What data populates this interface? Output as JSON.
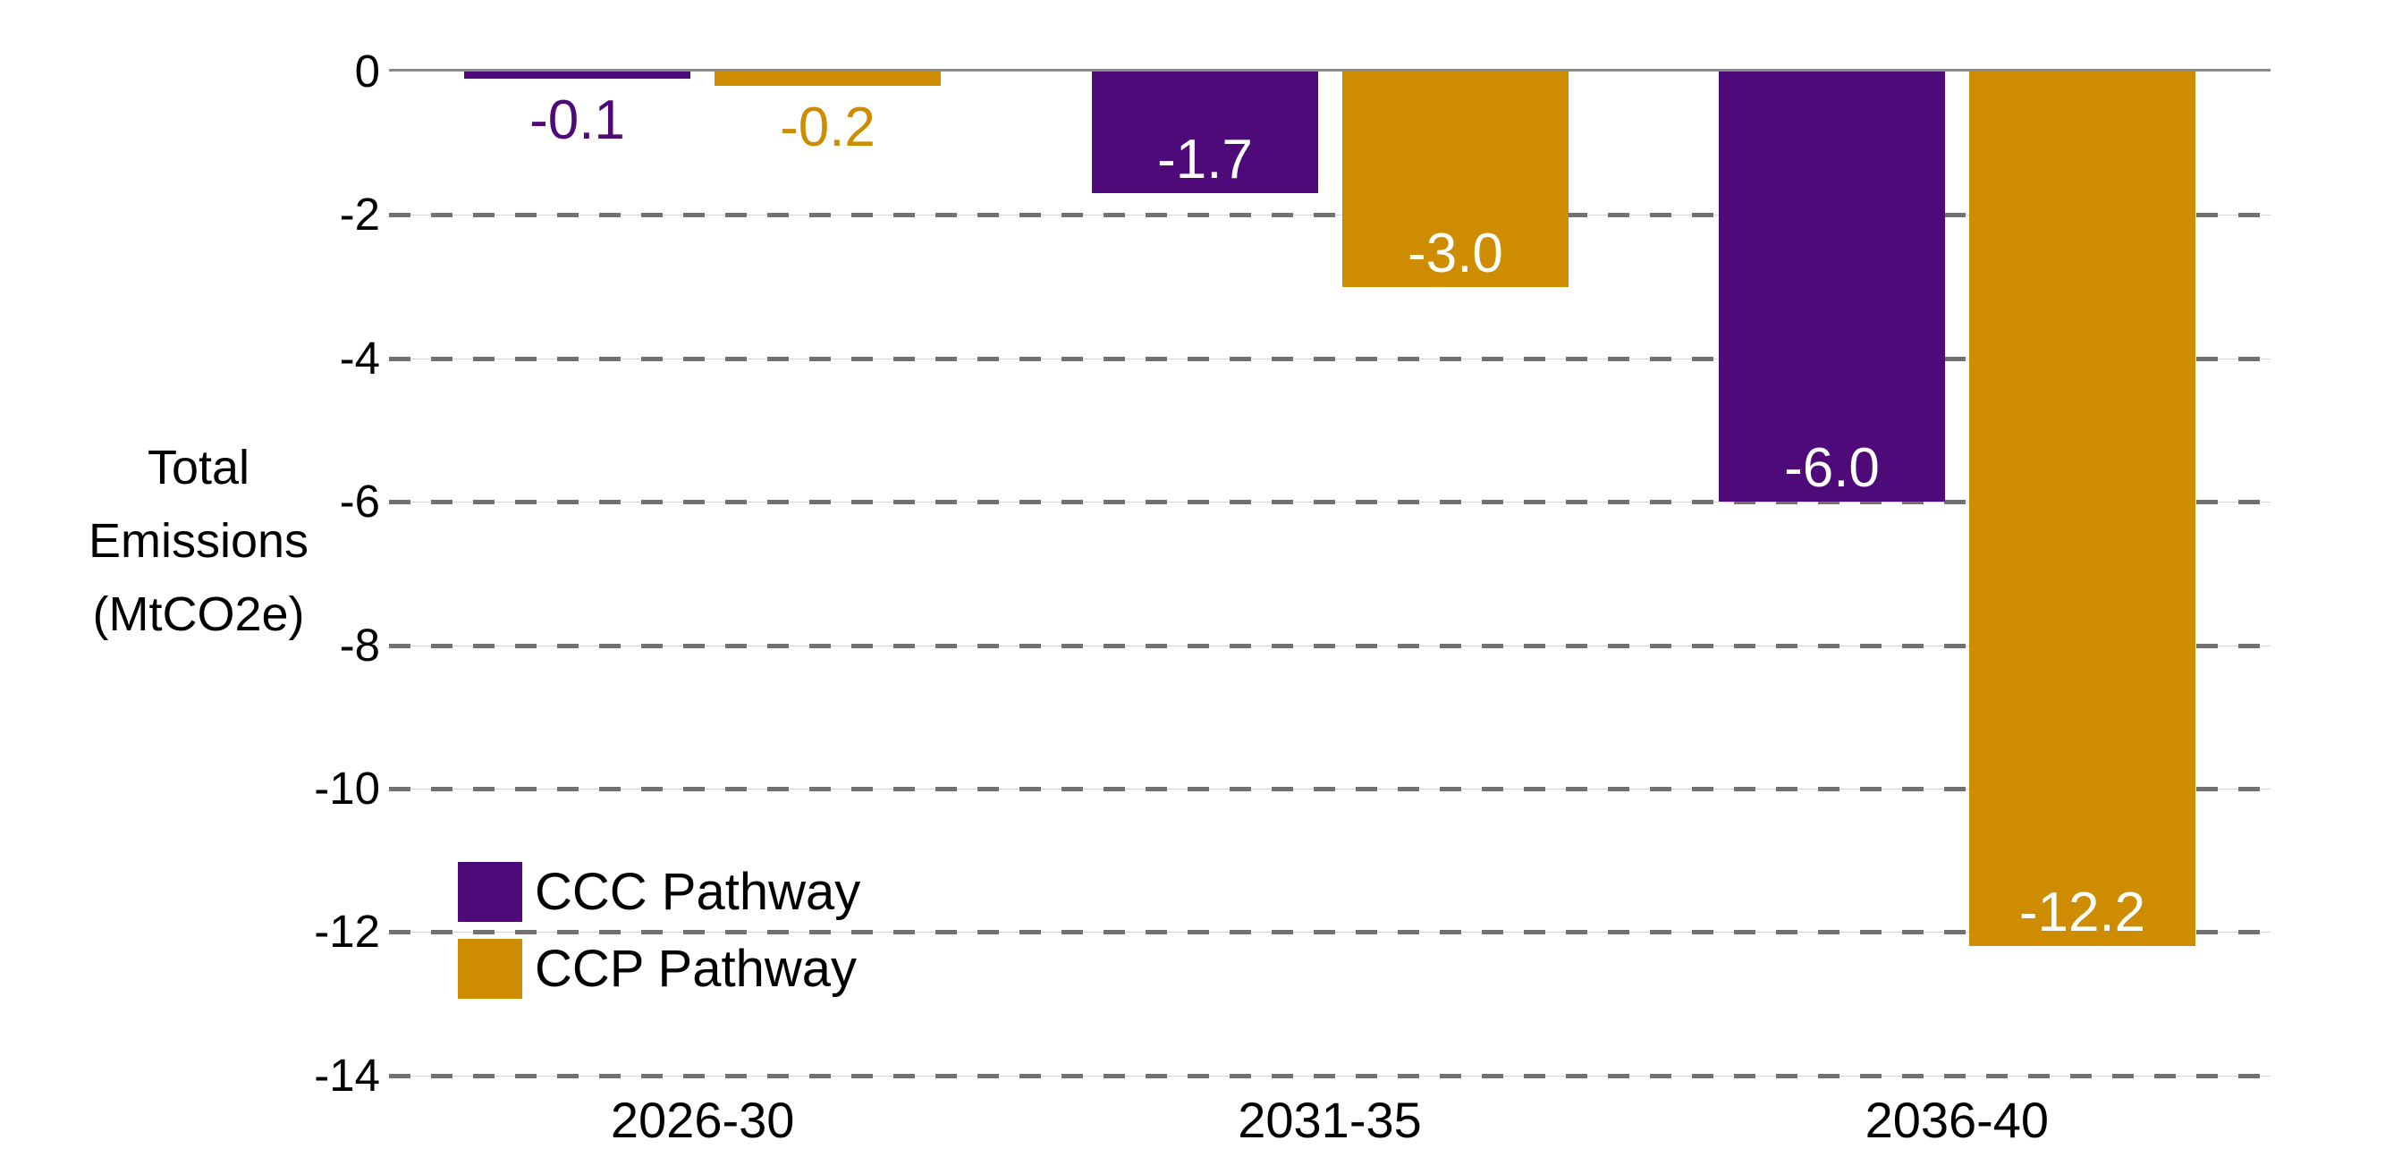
{
  "chart_data": {
    "type": "bar",
    "title": "",
    "categories": [
      "2026-30",
      "2031-35",
      "2036-40"
    ],
    "series": [
      {
        "name": "CCC Pathway",
        "color": "#4E0A78",
        "values": [
          -0.1,
          -1.7,
          -6.0
        ],
        "labels": [
          "-0.1",
          "-1.7",
          "-6.0"
        ]
      },
      {
        "name": "CCP Pathway",
        "color": "#CE8D00",
        "values": [
          -0.2,
          -3.0,
          -12.2
        ],
        "labels": [
          "-0.2",
          "-3.0",
          "-12.2"
        ]
      }
    ],
    "ylabel": "Total Emissions (MtCO2e)",
    "ylabel_lines": [
      "Total",
      "Emissions",
      "(MtCO2e)"
    ],
    "yticks": [
      0,
      -2,
      -4,
      -6,
      -8,
      -10,
      -12,
      -14
    ],
    "ytick_labels": [
      "0",
      "-2",
      "-4",
      "-6",
      "-8",
      "-10",
      "-12",
      "-14"
    ],
    "ylim": [
      -14,
      0
    ],
    "xlabel": "",
    "grid": "horizontal dashed",
    "grid_color": "#717171",
    "axis_color": "#898989",
    "value_label_inside_color": "#ffffff",
    "legend_position": "inside lower-left",
    "legend": [
      "CCC Pathway",
      "CCP Pathway"
    ]
  }
}
